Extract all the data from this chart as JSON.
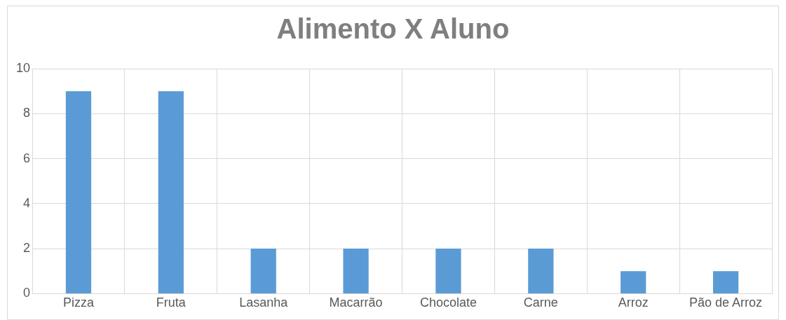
{
  "chart_data": {
    "type": "bar",
    "title": "Alimento X Aluno",
    "categories": [
      "Pizza",
      "Fruta",
      "Lasanha",
      "Macarrão",
      "Chocolate",
      "Carne",
      "Arroz",
      "Pão de Arroz"
    ],
    "values": [
      9,
      9,
      2,
      2,
      2,
      2,
      1,
      1
    ],
    "color": "#5b9bd5",
    "ylim": [
      0,
      10
    ],
    "yticks": [
      0,
      2,
      4,
      6,
      8,
      10
    ],
    "grid": true,
    "legend": false
  }
}
